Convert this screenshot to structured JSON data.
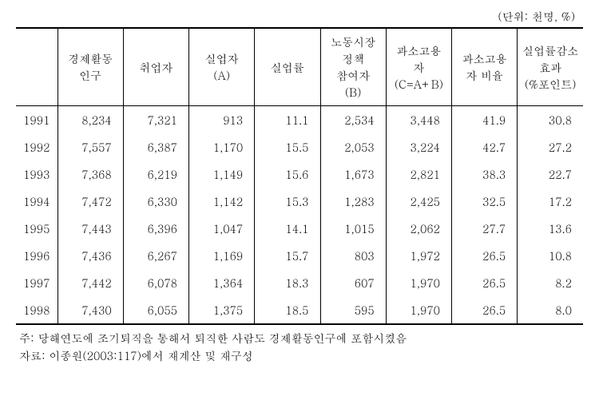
{
  "unit_label": "(단위: 천명, %)",
  "columns": [
    "",
    "경제활동\n인구",
    "취업자",
    "실업자\n(A)",
    "실업률",
    "노동시장\n정책\n참여자\n(B)",
    "과소고용\n자\n(C=A+B)",
    "과소고용\n자 비율",
    "실업률감소\n효과\n(%포인트)"
  ],
  "rows": [
    {
      "year": "1991",
      "c1": "8,234",
      "c2": "7,321",
      "c3": "913",
      "c4": "11.1",
      "c5": "2,534",
      "c6": "3,448",
      "c7": "41.9",
      "c8": "30.8"
    },
    {
      "year": "1992",
      "c1": "7,557",
      "c2": "6,387",
      "c3": "1,170",
      "c4": "15.5",
      "c5": "2,053",
      "c6": "3,224",
      "c7": "42.7",
      "c8": "27.2"
    },
    {
      "year": "1993",
      "c1": "7,368",
      "c2": "6,219",
      "c3": "1,149",
      "c4": "15.6",
      "c5": "1,673",
      "c6": "2,821",
      "c7": "38.3",
      "c8": "22.7"
    },
    {
      "year": "1994",
      "c1": "7,472",
      "c2": "6,330",
      "c3": "1,142",
      "c4": "15.3",
      "c5": "1,283",
      "c6": "2,425",
      "c7": "32.5",
      "c8": "17.2"
    },
    {
      "year": "1995",
      "c1": "7,443",
      "c2": "6,396",
      "c3": "1,047",
      "c4": "14.1",
      "c5": "1,015",
      "c6": "2,062",
      "c7": "27.7",
      "c8": "13.6"
    },
    {
      "year": "1996",
      "c1": "7,436",
      "c2": "6,267",
      "c3": "1,169",
      "c4": "15.7",
      "c5": "803",
      "c6": "1,972",
      "c7": "26.5",
      "c8": "10.8"
    },
    {
      "year": "1997",
      "c1": "7,442",
      "c2": "6,078",
      "c3": "1,364",
      "c4": "18.3",
      "c5": "607",
      "c6": "1,970",
      "c7": "26.5",
      "c8": "8.2"
    },
    {
      "year": "1998",
      "c1": "7,430",
      "c2": "6,055",
      "c3": "1,375",
      "c4": "18.5",
      "c5": "595",
      "c6": "1,970",
      "c7": "26.5",
      "c8": "8.0"
    }
  ],
  "footnotes": {
    "note": "주: 당해연도에 조기퇴직을 통해서 퇴직한 사람도 경제활동인구에 포함시켰음",
    "source": "자료: 이종원(2003:117)에서 재계산 및 재구성"
  }
}
